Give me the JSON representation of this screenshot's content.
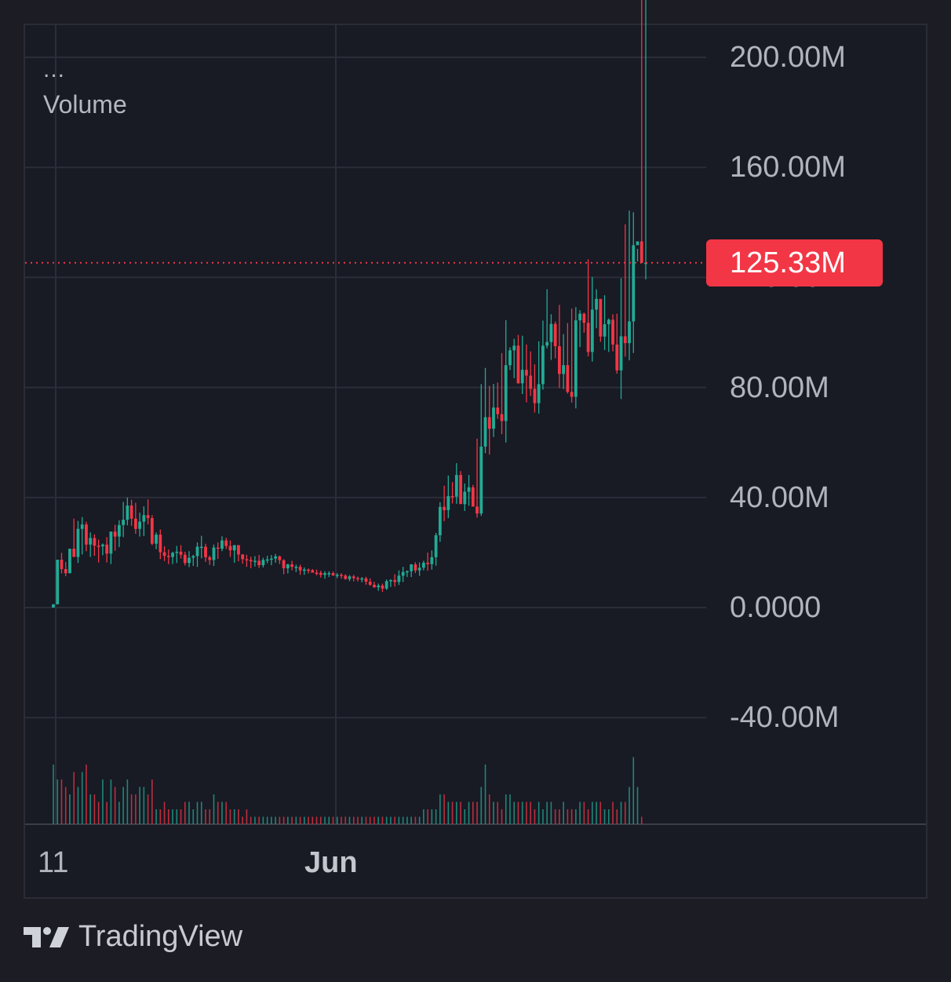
{
  "chart_data": {
    "type": "candlestick",
    "legend": {
      "more_label": "...",
      "indicator_label": "Volume"
    },
    "y_axis": {
      "ticks": [
        200000000,
        160000000,
        120000000,
        80000000,
        40000000,
        0,
        -40000000
      ],
      "tick_labels": [
        "200.00M",
        "160.00M",
        "120.00M",
        "80.00M",
        "40.00M",
        "0.0000",
        "-40.00M"
      ],
      "ylim": [
        -78000000,
        213000000
      ]
    },
    "x_axis": {
      "tick_labels": [
        "11",
        "Jun"
      ]
    },
    "last_value": 125330000,
    "last_value_label": "125.33M",
    "colors": {
      "up": "#22ab94",
      "down": "#f23645",
      "grid": "#2b2d38",
      "axis_text": "#b2b4bd"
    },
    "series": [
      {
        "type": "candles",
        "o": [
          0,
          1.2,
          17.4,
          14,
          12.5,
          21.4,
          18.4,
          28.6,
          30.2,
          22.9,
          25.3,
          22.5,
          22.3,
          22.9,
          19.6,
          27.6,
          25.8,
          30,
          31.9,
          37.1,
          32.3,
          28.6,
          31.2,
          33.6,
          32.5,
          23.2,
          26.5,
          20.1,
          18.8,
          18.4,
          19.9,
          20.3,
          19.2,
          16.2,
          18.1,
          18.7,
          22.1,
          22.1,
          18.3,
          17.3,
          21.8,
          21.4,
          24.4,
          22.4,
          20.8,
          22.7,
          19.3,
          17.6,
          17.3,
          16.8,
          17,
          15.4,
          17.3,
          17.5,
          17.8,
          18.6,
          17.2,
          14.3,
          15.7,
          14.8,
          14.8,
          13.5,
          13.8,
          13.6,
          12.7,
          12.6,
          11.9,
          12.5,
          12.5,
          11.7,
          11.9,
          11.6,
          10.4,
          11.3,
          10.7,
          10.5,
          10.6,
          9.4,
          8.3,
          7.4,
          8,
          6.9,
          9.6,
          10,
          9.3,
          11.6,
          12.9,
          13.2,
          15.7,
          13.5,
          14.5,
          16.3,
          15.8,
          18.3,
          26.3,
          36.6,
          35.4,
          40.5,
          40.3,
          48.2,
          37.6,
          42.1,
          43.7,
          36.7,
          34.2,
          58.5,
          69.2,
          65,
          72.7,
          70.3,
          67.8,
          88.1,
          93.5,
          95.2,
          81.5,
          86.4,
          84.3,
          79.5,
          74.3,
          81.2,
          95.2,
          96.5,
          103.1,
          95,
          84.9,
          88.1,
          78.4,
          76.6,
          104.4,
          106.8,
          103.5,
          92.9,
          108.3,
          112.2,
          98.5,
          103,
          104.6,
          95.6,
          86.2,
          98.6,
          96.1,
          104,
          131.7,
          133.1,
          125.3
        ],
        "h": [
          1.2,
          17.4,
          19.9,
          16.6,
          21.4,
          32.3,
          31.5,
          32.9,
          31.2,
          27.3,
          26.6,
          24.7,
          23.3,
          25.6,
          27.6,
          30.1,
          31.7,
          38.4,
          40,
          39.2,
          38.1,
          34.5,
          36.8,
          39.3,
          33.6,
          27.3,
          28.4,
          22.3,
          21.1,
          20.3,
          22.4,
          22.7,
          20.3,
          20.5,
          19.2,
          23.7,
          26.1,
          23.2,
          18.9,
          22.9,
          23.7,
          25.9,
          25.4,
          24.4,
          22.7,
          22.7,
          19.4,
          19.2,
          18.5,
          18.7,
          19.1,
          18.1,
          18.8,
          19.1,
          19.5,
          18.9,
          17.6,
          15.9,
          17,
          15.6,
          15.6,
          14.6,
          14.2,
          14,
          13.8,
          13.4,
          13.2,
          13.2,
          13.1,
          12.5,
          12.5,
          12.1,
          11.8,
          11.9,
          11.3,
          11.1,
          11.2,
          10.6,
          9.4,
          8.7,
          8.7,
          10.2,
          10.3,
          12.1,
          13.5,
          14.8,
          13.5,
          15.8,
          16.5,
          16.4,
          17,
          20,
          20.8,
          27.1,
          38.3,
          44.3,
          48,
          45.6,
          52.5,
          49.6,
          45.1,
          48.2,
          44.6,
          61.4,
          81.2,
          87.1,
          80.6,
          81.3,
          81.8,
          92.5,
          104.5,
          94.6,
          97.7,
          99.1,
          98.8,
          95.6,
          93.1,
          88.4,
          96.8,
          104.3,
          115.7,
          106.6,
          104,
          110,
          99.4,
          103.4,
          108.7,
          109.2,
          108.1,
          107.2,
          126.6,
          120.2,
          115.7,
          111.3,
          113.5,
          105.1,
          106.6,
          106.8,
          119.7,
          139.3,
          144.3,
          143.7,
          130.4
        ],
        "l": [
          0,
          1.2,
          12.4,
          11.4,
          12.4,
          19.6,
          16.2,
          19.3,
          20.5,
          18.4,
          18.8,
          16.4,
          19,
          16.4,
          15.8,
          20.6,
          22,
          25.6,
          29.9,
          29.7,
          26.8,
          25.8,
          26,
          30.2,
          22.7,
          21.2,
          17.6,
          16.9,
          15.8,
          15.8,
          16.2,
          17.8,
          15.3,
          14.7,
          15.1,
          14.8,
          17.9,
          16.6,
          15.5,
          15.1,
          17.7,
          20.5,
          21.3,
          18.4,
          16.3,
          16.8,
          15.9,
          14.8,
          14.3,
          14.9,
          14.4,
          14.6,
          16.1,
          15.4,
          16.3,
          15.8,
          12.1,
          12.4,
          13.5,
          12.9,
          11.9,
          11.9,
          12.4,
          12.8,
          11.7,
          10.9,
          10.5,
          11.1,
          11.5,
          10.7,
          10.5,
          10.1,
          9.6,
          9.5,
          9.5,
          9.2,
          8.3,
          7.9,
          7.1,
          6.1,
          5.7,
          6.4,
          7.5,
          7.6,
          8.2,
          9.3,
          11.1,
          11.1,
          12.5,
          11.5,
          13.5,
          13.4,
          13.8,
          15.2,
          23.9,
          31.4,
          32.5,
          37.8,
          37.7,
          39,
          35.1,
          37,
          37.3,
          32.7,
          33.3,
          56.1,
          55.6,
          62,
          68.6,
          63,
          60,
          86.3,
          83.4,
          81.4,
          77.6,
          74.6,
          76.9,
          70.9,
          70.5,
          79.2,
          94.2,
          90,
          90.6,
          79.8,
          79.4,
          77.8,
          74.5,
          72.4,
          94.7,
          99.9,
          91.3,
          89.4,
          101.5,
          96.6,
          93.6,
          92.9,
          93.1,
          85,
          75.8,
          91.2,
          89.9,
          92.5,
          125.8,
          127.4,
          119.3
        ],
        "c": [
          1.2,
          17.4,
          14,
          12.5,
          21.4,
          18.4,
          28.6,
          30.2,
          22.9,
          25.3,
          22.5,
          22.3,
          22.9,
          19.6,
          27.6,
          25.8,
          30,
          31.9,
          37.1,
          32.3,
          28.6,
          31.2,
          33.6,
          32.5,
          23.2,
          26.5,
          20.1,
          18.8,
          18.4,
          19.9,
          20.3,
          19.2,
          16.2,
          18.1,
          18.7,
          22.1,
          22.1,
          18.3,
          17.3,
          21.8,
          21.4,
          24.4,
          22.4,
          20.8,
          22.7,
          19.3,
          17.6,
          17.3,
          16.8,
          17,
          15.4,
          17.3,
          17.5,
          17.8,
          18.6,
          17.2,
          14.3,
          15.7,
          14.8,
          14.8,
          13.5,
          13.8,
          13.6,
          12.7,
          12.6,
          11.9,
          12.5,
          12.5,
          11.7,
          11.9,
          11.6,
          10.4,
          11.3,
          10.7,
          10.5,
          10.6,
          9.4,
          8.3,
          7.4,
          8,
          6.9,
          9.6,
          10,
          9.3,
          11.6,
          12.9,
          13.2,
          15.7,
          13.5,
          14.5,
          16.3,
          15.8,
          18.3,
          26.3,
          36.6,
          35.4,
          40.5,
          40.3,
          48.2,
          37.6,
          42.1,
          43.7,
          36.7,
          34.2,
          58.5,
          69.2,
          65,
          72.7,
          70.3,
          67.8,
          88.1,
          93.5,
          95.2,
          81.5,
          86.4,
          84.3,
          79.5,
          74.3,
          81.2,
          95.2,
          96.5,
          103.1,
          95,
          84.9,
          88.1,
          78.4,
          76.6,
          104.4,
          106.8,
          103.5,
          92.9,
          108.3,
          112.2,
          98.5,
          103,
          104.6,
          95.6,
          86.2,
          98.6,
          96.1,
          104,
          131.7,
          133.1,
          125.3,
          125.3
        ],
        "unit": "millions"
      },
      {
        "type": "volume_histogram",
        "values": [
          0.8,
          0.6,
          0.6,
          0.5,
          0.4,
          0.7,
          0.5,
          0.7,
          0.8,
          0.4,
          0.4,
          0.3,
          0.6,
          0.3,
          0.6,
          0.5,
          0.3,
          0.5,
          0.6,
          0.4,
          0.4,
          0.5,
          0.5,
          0.4,
          0.6,
          0.2,
          0.2,
          0.3,
          0.2,
          0.2,
          0.2,
          0.2,
          0.3,
          0.3,
          0.2,
          0.3,
          0.3,
          0.2,
          0.2,
          0.4,
          0.3,
          0.3,
          0.3,
          0.2,
          0.2,
          0.2,
          0.1,
          0.2,
          0.1,
          0.1,
          0.1,
          0.1,
          0.1,
          0.1,
          0.1,
          0.1,
          0.1,
          0.1,
          0.1,
          0.1,
          0.1,
          0.1,
          0.1,
          0.1,
          0.1,
          0.1,
          0.1,
          0.1,
          0.1,
          0.1,
          0.1,
          0.1,
          0.1,
          0.1,
          0.1,
          0.1,
          0.1,
          0.1,
          0.1,
          0.1,
          0.1,
          0.1,
          0.1,
          0.1,
          0.1,
          0.1,
          0.1,
          0.1,
          0.1,
          0.1,
          0.2,
          0.2,
          0.2,
          0.2,
          0.4,
          0.4,
          0.3,
          0.3,
          0.3,
          0.3,
          0.2,
          0.3,
          0.3,
          0.3,
          0.5,
          0.8,
          0.4,
          0.3,
          0.3,
          0.2,
          0.4,
          0.4,
          0.3,
          0.3,
          0.3,
          0.3,
          0.3,
          0.2,
          0.3,
          0.2,
          0.3,
          0.3,
          0.2,
          0.2,
          0.3,
          0.2,
          0.2,
          0.2,
          0.3,
          0.3,
          0.2,
          0.3,
          0.3,
          0.3,
          0.2,
          0.2,
          0.3,
          0.2,
          0.3,
          0.3,
          0.5,
          0.9,
          0.5,
          0.1
        ],
        "unit": "relative"
      }
    ]
  },
  "brand": {
    "name": "TradingView"
  }
}
